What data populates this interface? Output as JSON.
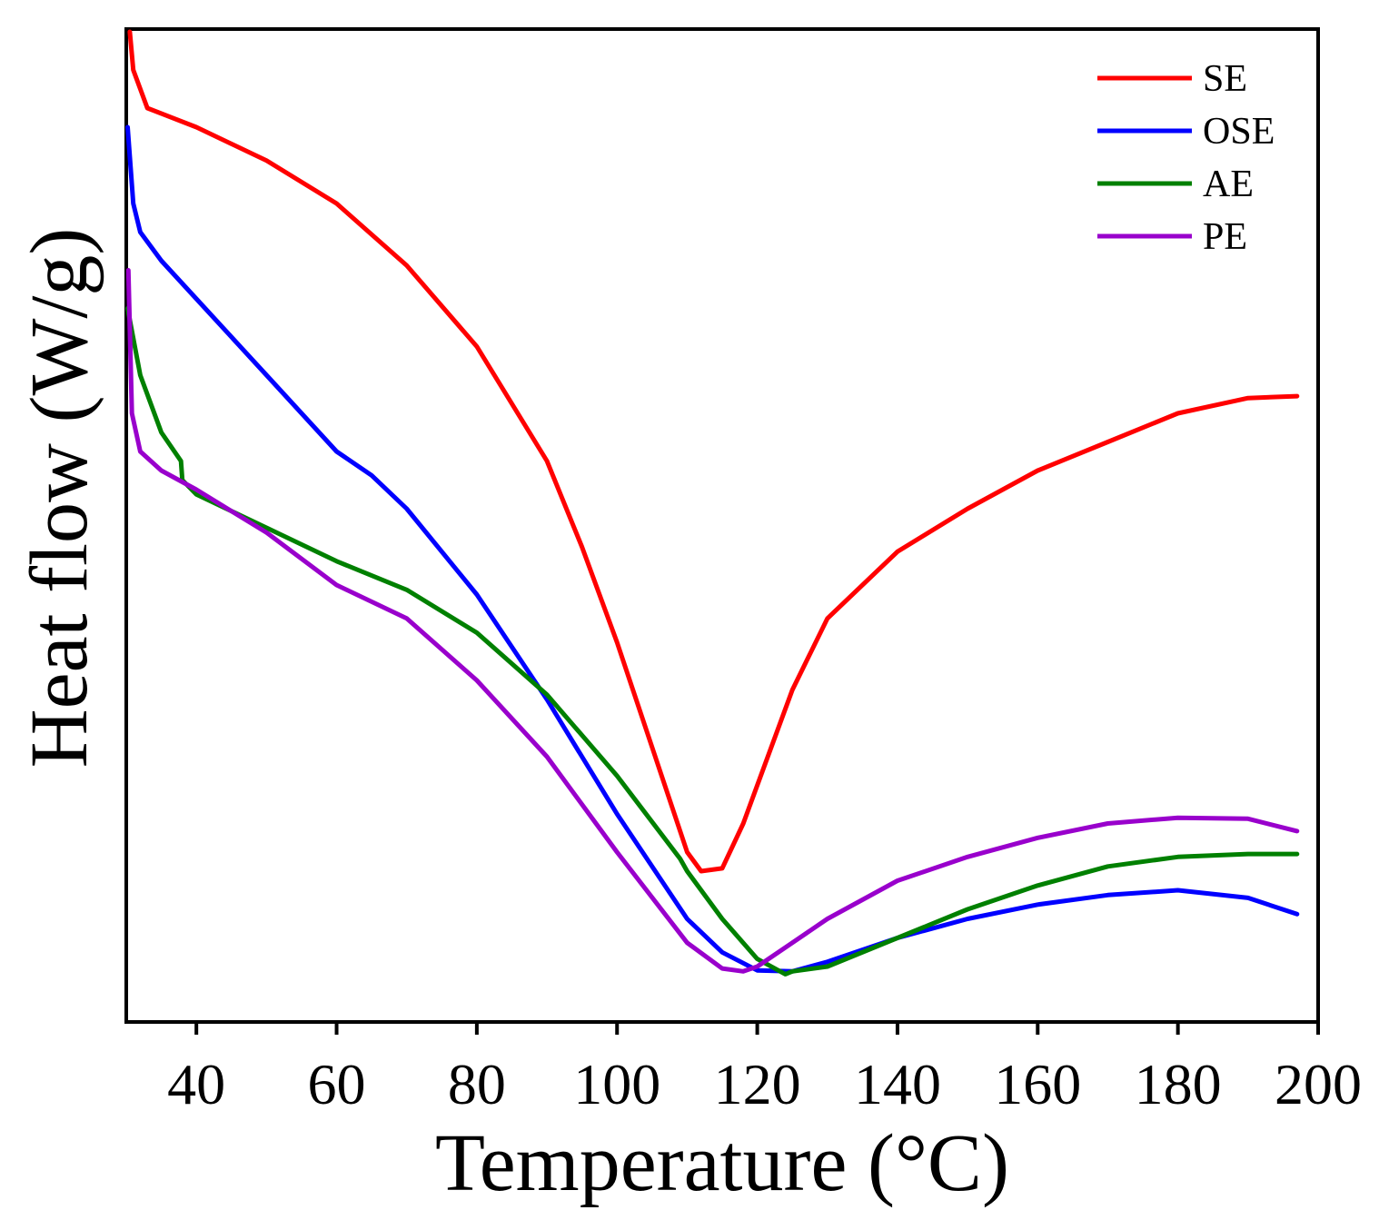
{
  "chart_data": {
    "type": "line",
    "title": "",
    "xlabel": "Temperature (°C)",
    "ylabel": "Heat flow (W/g)",
    "xlim": [
      30,
      200
    ],
    "ylim": [
      0,
      100
    ],
    "x_ticks": [
      40,
      60,
      80,
      100,
      120,
      140,
      160,
      180,
      200
    ],
    "x_tick_labels": [
      "40",
      "60",
      "80",
      "100",
      "120",
      "140",
      "160",
      "180",
      "200"
    ],
    "y_ticks_shown": false,
    "legend_position": "top-right",
    "series": [
      {
        "name": "SE",
        "color": "#ff0000",
        "points": [
          [
            30.5,
            100
          ],
          [
            31,
            96
          ],
          [
            33,
            92
          ],
          [
            40,
            90
          ],
          [
            50,
            86.5
          ],
          [
            60,
            82
          ],
          [
            70,
            75.5
          ],
          [
            80,
            67
          ],
          [
            90,
            55
          ],
          [
            95,
            46
          ],
          [
            100,
            36
          ],
          [
            105,
            25
          ],
          [
            110,
            14
          ],
          [
            112,
            12
          ],
          [
            115,
            12.3
          ],
          [
            118,
            17
          ],
          [
            120,
            21
          ],
          [
            125,
            31
          ],
          [
            130,
            38.5
          ],
          [
            140,
            45.5
          ],
          [
            150,
            50
          ],
          [
            160,
            54
          ],
          [
            170,
            57
          ],
          [
            180,
            60
          ],
          [
            190,
            61.6
          ],
          [
            197,
            61.8
          ]
        ]
      },
      {
        "name": "OSE",
        "color": "#0000ff",
        "points": [
          [
            30.2,
            90
          ],
          [
            31,
            82
          ],
          [
            32,
            79
          ],
          [
            35,
            76
          ],
          [
            40,
            72
          ],
          [
            50,
            64
          ],
          [
            60,
            56
          ],
          [
            65,
            53.5
          ],
          [
            70,
            50
          ],
          [
            80,
            41
          ],
          [
            90,
            30
          ],
          [
            100,
            18
          ],
          [
            110,
            7
          ],
          [
            115,
            3.5
          ],
          [
            120,
            1.6
          ],
          [
            125,
            1.5
          ],
          [
            130,
            2.5
          ],
          [
            140,
            5
          ],
          [
            150,
            7
          ],
          [
            160,
            8.5
          ],
          [
            170,
            9.5
          ],
          [
            180,
            10
          ],
          [
            190,
            9.2
          ],
          [
            197,
            7.5
          ]
        ]
      },
      {
        "name": "AE",
        "color": "#008000",
        "points": [
          [
            30.2,
            71
          ],
          [
            32,
            64
          ],
          [
            35,
            58
          ],
          [
            37.8,
            55
          ],
          [
            38,
            53
          ],
          [
            40,
            51.5
          ],
          [
            50,
            48
          ],
          [
            60,
            44.5
          ],
          [
            70,
            41.5
          ],
          [
            80,
            37
          ],
          [
            90,
            30.5
          ],
          [
            100,
            22
          ],
          [
            109,
            13.3
          ],
          [
            110,
            12
          ],
          [
            115,
            7
          ],
          [
            120,
            2.8
          ],
          [
            124,
            1.2
          ],
          [
            125,
            1.5
          ],
          [
            130,
            2
          ],
          [
            140,
            5
          ],
          [
            150,
            8
          ],
          [
            160,
            10.5
          ],
          [
            170,
            12.5
          ],
          [
            180,
            13.5
          ],
          [
            190,
            13.8
          ],
          [
            197,
            13.8
          ]
        ]
      },
      {
        "name": "PE",
        "color": "#9900cc",
        "points": [
          [
            30.3,
            75
          ],
          [
            30.8,
            60
          ],
          [
            32,
            56
          ],
          [
            35,
            54
          ],
          [
            40,
            52
          ],
          [
            50,
            47.5
          ],
          [
            60,
            42
          ],
          [
            70,
            38.5
          ],
          [
            80,
            32
          ],
          [
            90,
            24
          ],
          [
            100,
            14
          ],
          [
            110,
            4.5
          ],
          [
            115,
            1.8
          ],
          [
            118,
            1.5
          ],
          [
            120,
            2
          ],
          [
            125,
            4.5
          ],
          [
            130,
            7
          ],
          [
            140,
            11
          ],
          [
            150,
            13.5
          ],
          [
            160,
            15.5
          ],
          [
            170,
            17
          ],
          [
            180,
            17.6
          ],
          [
            190,
            17.5
          ],
          [
            197,
            16.2
          ]
        ]
      }
    ]
  }
}
